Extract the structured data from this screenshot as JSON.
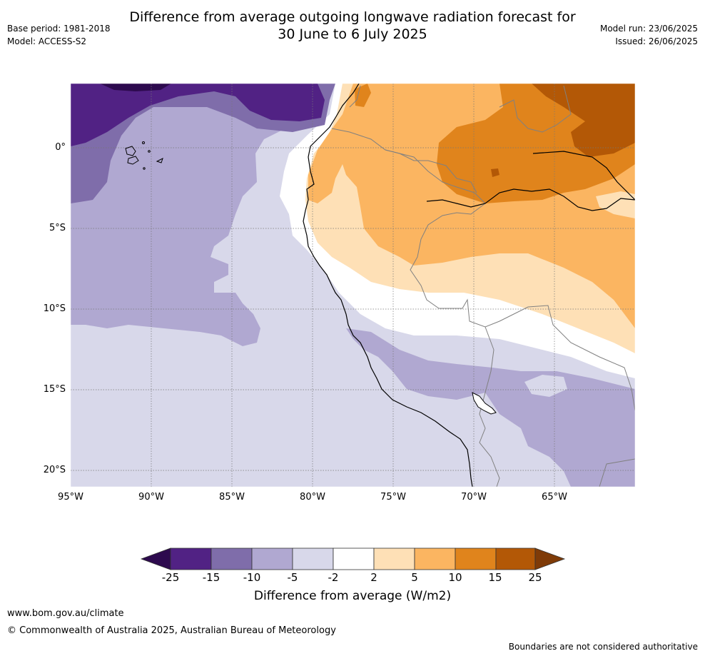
{
  "header": {
    "title_line1": "Difference from average outgoing longwave radiation forecast for",
    "title_line2": "30 June to 6 July 2025",
    "base_period": "Base period: 1981-2018",
    "model": "Model: ACCESS-S2",
    "model_run": "Model run: 23/06/2025",
    "issued": "Issued: 26/06/2025"
  },
  "map": {
    "lat_labels": [
      "0°",
      "5°S",
      "10°S",
      "15°S",
      "20°S"
    ],
    "lon_labels": [
      "95°W",
      "90°W",
      "85°W",
      "80°W",
      "75°W",
      "70°W",
      "65°W"
    ]
  },
  "colorbar": {
    "ticks": [
      "-25",
      "-15",
      "-10",
      "-5",
      "-2",
      "2",
      "5",
      "10",
      "15",
      "25"
    ],
    "colors": [
      "#2d0a4e",
      "#512284",
      "#7f6daa",
      "#b0a8d1",
      "#d8d8ea",
      "#ffffff",
      "#fee0b6",
      "#fbb561",
      "#e0841c",
      "#b35806",
      "#7f3b08"
    ],
    "label": "Difference from average (W/m2)"
  },
  "footer": {
    "url": "www.bom.gov.au/climate",
    "copyright": "© Commonwealth of Australia 2025, Australian Bureau of Meteorology",
    "disclaimer": "Boundaries are not considered authoritative"
  }
}
